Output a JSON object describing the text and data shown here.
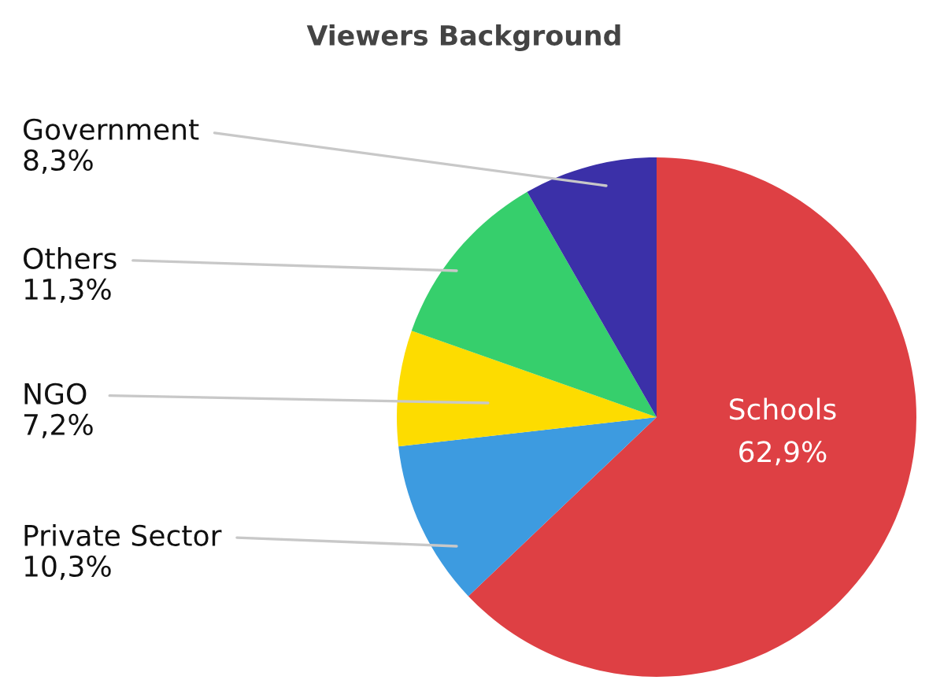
{
  "chart_data": {
    "type": "pie",
    "title": "Viewers Background",
    "categories": [
      "Schools",
      "Private Sector",
      "NGO",
      "Others",
      "Government"
    ],
    "values": [
      62.9,
      10.3,
      7.2,
      11.3,
      8.3
    ],
    "value_labels": [
      "62,9%",
      "10,3%",
      "7,2%",
      "11,3%",
      "8,3%"
    ],
    "colors": [
      "#de4044",
      "#3d9be0",
      "#fddc00",
      "#36cf6c",
      "#3b30a8"
    ],
    "legend": false
  }
}
